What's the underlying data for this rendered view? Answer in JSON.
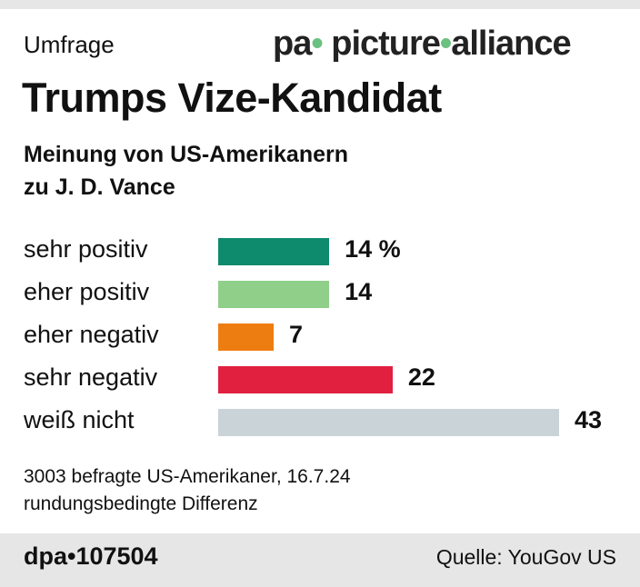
{
  "header": {
    "kicker": "Umfrage",
    "title": "Trumps Vize-Kandidat",
    "subtitle_line1": "Meinung von US-Amerikanern",
    "subtitle_line2": "zu J. D. Vance"
  },
  "chart_data": {
    "type": "bar",
    "orientation": "horizontal",
    "unit": "%",
    "categories": [
      "sehr positiv",
      "eher positiv",
      "eher negativ",
      "sehr negativ",
      "weiß nicht"
    ],
    "values": [
      14,
      14,
      7,
      22,
      43
    ],
    "value_labels": [
      "14 %",
      "14",
      "7",
      "22",
      "43"
    ],
    "colors": [
      "#0e8a6c",
      "#8fcf8a",
      "#ee7d11",
      "#e12040",
      "#c9d3d8"
    ],
    "xlim": [
      0,
      43
    ],
    "grid": false
  },
  "notes": {
    "line1": "3003 befragte US-Amerikaner, 16.7.24",
    "line2": "rundungsbedingte Differenz"
  },
  "footer": {
    "brand": "dpa•107504",
    "source": "Quelle: YouGov US"
  },
  "watermark": "pa picture alliance"
}
